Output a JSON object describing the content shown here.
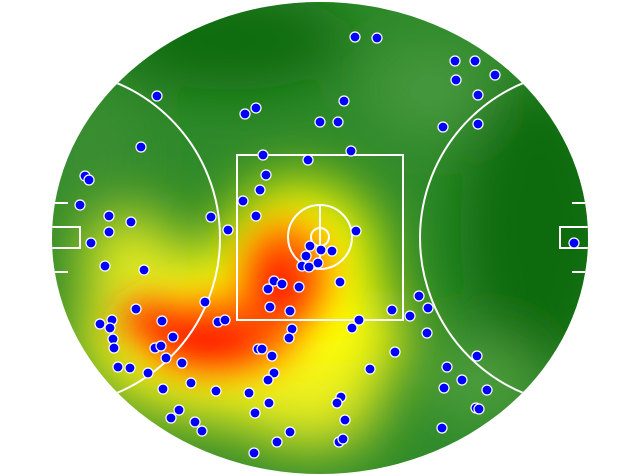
{
  "chart_data": {
    "type": "heatmap",
    "overlay": "scatter",
    "grid": false,
    "legend": "none",
    "colors": {
      "cold": "#0b6a10",
      "mid": "#5aa83a",
      "warm": "#ffff00",
      "hot": "#ff0000",
      "points": "#0000ff",
      "point_outline": "#ffffff",
      "field_lines": "#ffffff"
    }
  }
}
